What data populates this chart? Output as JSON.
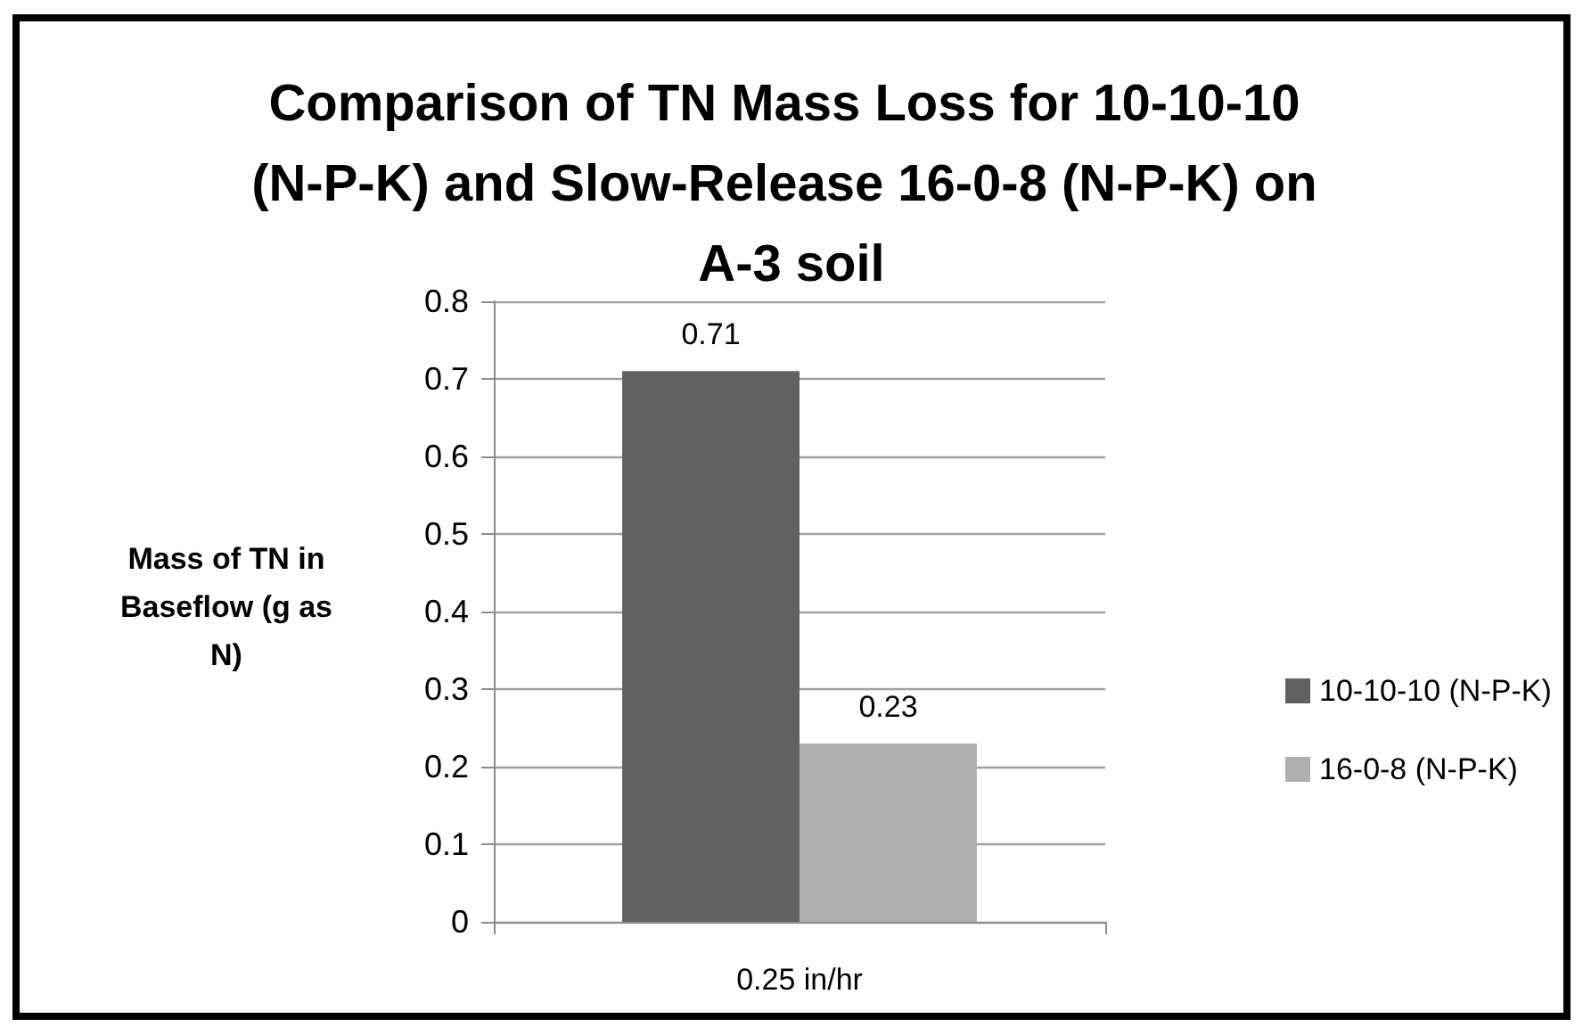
{
  "chart_data": {
    "type": "bar",
    "title": "Comparison of TN Mass Loss for 10-10-10 (N-P-K) and Slow-Release 16-0-8 (N-P-K) on A-3 soil",
    "ylabel": "Mass of TN in Baseflow (g as N)",
    "categories": [
      "0.25 in/hr"
    ],
    "series": [
      {
        "name": "10-10-10 (N-P-K)",
        "color": "#616161",
        "values": [
          0.71
        ]
      },
      {
        "name": "16-0-8 (N-P-K)",
        "color": "#b0b0b0",
        "values": [
          0.23
        ]
      }
    ],
    "ylim": [
      0,
      0.8
    ],
    "yticks": [
      0,
      0.1,
      0.2,
      0.3,
      0.4,
      0.5,
      0.6,
      0.7,
      0.8
    ],
    "grid": "y",
    "legend": "right",
    "data_labels": true
  }
}
